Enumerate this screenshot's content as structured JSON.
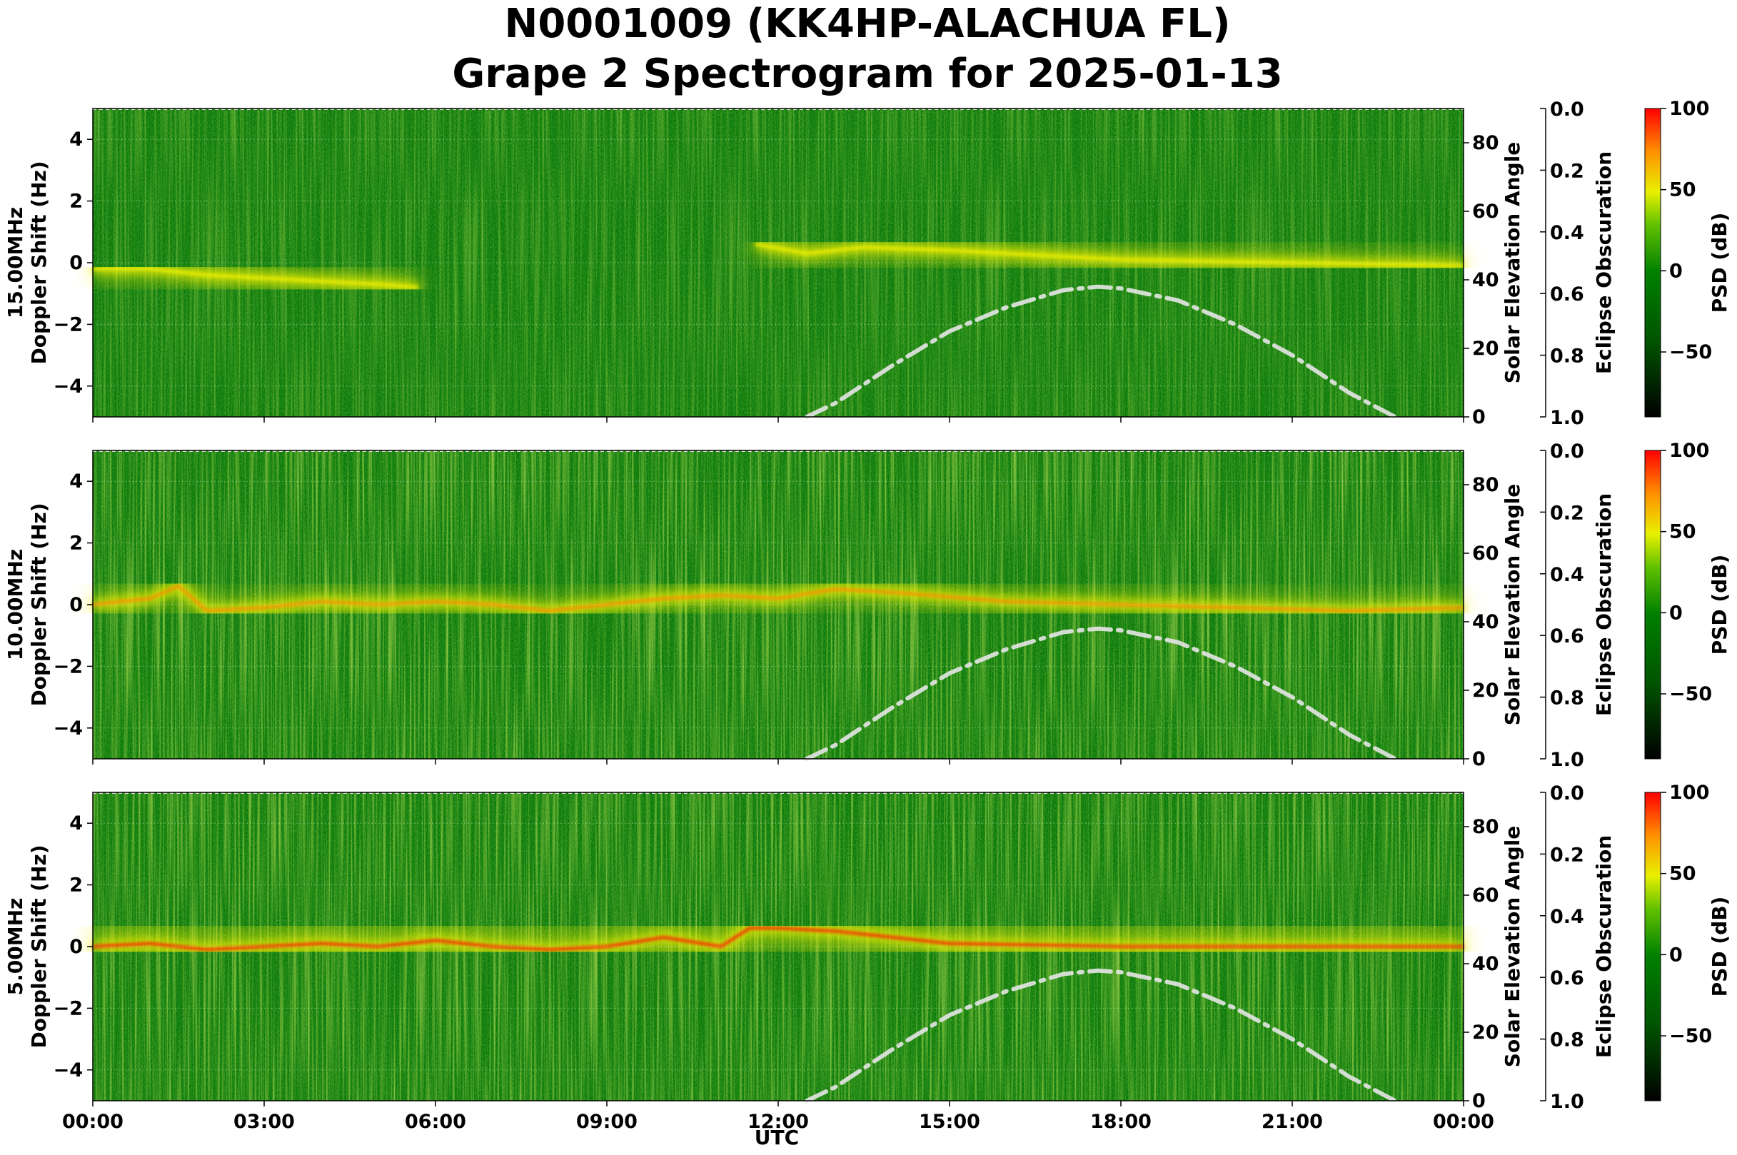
{
  "title": {
    "line1": "N0001009 (KK4HP-ALACHUA FL)",
    "line2": "Grape 2 Spectrogram for 2025-01-13"
  },
  "colors": {
    "background_green": "#0a7a0a",
    "noise_light_green": "#5fb526",
    "signal_yellow": "#f0f000",
    "signal_orange": "#ff8a00",
    "signal_red": "#ff1a00",
    "solar_curve": "#e6e6e6"
  },
  "chart_data": [
    {
      "type": "heatmap",
      "panel": "15 MHz",
      "ylabel": "15.00MHz\nDoppler Shift (Hz)",
      "ylabel_lines": [
        "15.00MHz",
        "Doppler Shift (Hz)"
      ],
      "y_ticks": [
        "4",
        "2",
        "0",
        "−2",
        "−4"
      ],
      "ylim": [
        -5,
        5
      ],
      "y2label": "Solar Elevation Angle",
      "y2_ticks": [
        "80",
        "60",
        "40",
        "20",
        "0"
      ],
      "y2lim": [
        0,
        90
      ],
      "y3label": "Eclipse Obscuration",
      "y3_ticks": [
        "0.0",
        "0.2",
        "0.4",
        "0.6",
        "0.8",
        "1.0"
      ],
      "y3lim": [
        1.0,
        0.0
      ],
      "colorbar_label": "PSD (dB)",
      "colorbar_ticks": [
        "100",
        "50",
        "0",
        "−50"
      ],
      "colorbar_range": [
        -90,
        100
      ],
      "solar_elevation": {
        "x_hours": [
          12.5,
          13,
          14,
          15,
          16,
          17,
          17.6,
          18,
          19,
          20,
          21,
          22,
          22.8
        ],
        "elevation_deg": [
          0,
          4,
          15,
          25,
          32,
          37,
          38,
          37.5,
          34,
          27,
          18,
          7,
          0
        ]
      },
      "dominant_trace": {
        "x_hours": [
          0,
          1,
          2,
          3,
          4,
          5,
          5.7,
          7,
          8,
          9,
          10,
          11,
          11.6,
          12.5,
          13.5,
          15,
          18,
          21,
          24
        ],
        "doppler_hz": [
          -0.2,
          -0.2,
          -0.4,
          -0.5,
          -0.6,
          -0.7,
          -0.8,
          null,
          null,
          null,
          null,
          null,
          0.6,
          0.3,
          0.5,
          0.4,
          0.1,
          0.0,
          -0.1
        ]
      }
    },
    {
      "type": "heatmap",
      "panel": "10 MHz",
      "ylabel": "10.00MHz\nDoppler Shift (Hz)",
      "ylabel_lines": [
        "10.00MHz",
        "Doppler Shift (Hz)"
      ],
      "y_ticks": [
        "4",
        "2",
        "0",
        "−2",
        "−4"
      ],
      "ylim": [
        -5,
        5
      ],
      "y2label": "Solar Elevation Angle",
      "y2_ticks": [
        "80",
        "60",
        "40",
        "20",
        "0"
      ],
      "y2lim": [
        0,
        90
      ],
      "y3label": "Eclipse Obscuration",
      "y3_ticks": [
        "0.0",
        "0.2",
        "0.4",
        "0.6",
        "0.8",
        "1.0"
      ],
      "y3lim": [
        1.0,
        0.0
      ],
      "colorbar_label": "PSD (dB)",
      "colorbar_ticks": [
        "100",
        "50",
        "0",
        "−50"
      ],
      "colorbar_range": [
        -90,
        100
      ],
      "solar_elevation": {
        "x_hours": [
          12.5,
          13,
          14,
          15,
          16,
          17,
          17.6,
          18,
          19,
          20,
          21,
          22,
          22.8
        ],
        "elevation_deg": [
          0,
          4,
          15,
          25,
          32,
          37,
          38,
          37.5,
          34,
          27,
          18,
          7,
          0
        ]
      },
      "dominant_trace": {
        "x_hours": [
          0,
          1,
          1.5,
          2,
          3,
          4,
          5,
          6,
          7,
          8,
          9,
          10,
          11,
          12,
          13,
          14,
          16,
          18,
          20,
          22,
          24
        ],
        "doppler_hz": [
          0.0,
          0.2,
          0.6,
          -0.2,
          -0.1,
          0.1,
          0.0,
          0.1,
          0.0,
          -0.2,
          0.0,
          0.2,
          0.3,
          0.2,
          0.5,
          0.4,
          0.1,
          0.0,
          -0.1,
          -0.2,
          -0.1
        ]
      }
    },
    {
      "type": "heatmap",
      "panel": "5 MHz",
      "ylabel": "5.00MHz\nDoppler Shift (Hz)",
      "ylabel_lines": [
        "5.00MHz",
        "Doppler Shift (Hz)"
      ],
      "y_ticks": [
        "4",
        "2",
        "0",
        "−2",
        "−4"
      ],
      "ylim": [
        -5,
        5
      ],
      "y2label": "Solar Elevation Angle",
      "y2_ticks": [
        "80",
        "60",
        "40",
        "20",
        "0"
      ],
      "y2lim": [
        0,
        90
      ],
      "y3label": "Eclipse Obscuration",
      "y3_ticks": [
        "0.0",
        "0.2",
        "0.4",
        "0.6",
        "0.8",
        "1.0"
      ],
      "y3lim": [
        1.0,
        0.0
      ],
      "colorbar_label": "PSD (dB)",
      "colorbar_ticks": [
        "100",
        "50",
        "0",
        "−50"
      ],
      "colorbar_range": [
        -90,
        100
      ],
      "solar_elevation": {
        "x_hours": [
          12.5,
          13,
          14,
          15,
          16,
          17,
          17.6,
          18,
          19,
          20,
          21,
          22,
          22.8
        ],
        "elevation_deg": [
          0,
          4,
          15,
          25,
          32,
          37,
          38,
          37.5,
          34,
          27,
          18,
          7,
          0
        ]
      },
      "dominant_trace": {
        "x_hours": [
          0,
          1,
          2,
          3,
          4,
          5,
          6,
          7,
          8,
          9,
          10,
          11,
          11.5,
          12,
          13,
          14,
          15,
          18,
          21,
          24
        ],
        "doppler_hz": [
          0.0,
          0.1,
          -0.1,
          0.0,
          0.1,
          0.0,
          0.2,
          0.0,
          -0.1,
          0.0,
          0.3,
          0.0,
          0.6,
          0.6,
          0.5,
          0.3,
          0.1,
          0.0,
          0.0,
          0.0
        ]
      }
    }
  ],
  "x_axis": {
    "label": "UTC",
    "ticks": [
      "00:00",
      "03:00",
      "06:00",
      "09:00",
      "12:00",
      "15:00",
      "18:00",
      "21:00",
      "00:00"
    ],
    "range_hours": [
      0,
      24
    ]
  }
}
